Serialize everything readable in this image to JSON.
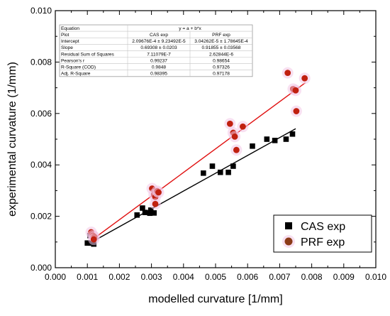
{
  "chart_data": {
    "type": "scatter",
    "xlabel": "modelled curvature [1/mm]",
    "ylabel": "experimental curvature (1/mm)",
    "xlim": [
      0.0,
      0.01
    ],
    "ylim": [
      0.0,
      0.01
    ],
    "xticks": [
      "0.000",
      "0.001",
      "0.002",
      "0.003",
      "0.004",
      "0.005",
      "0.006",
      "0.007",
      "0.008",
      "0.009",
      "0.010"
    ],
    "yticks": [
      "0.000",
      "0.002",
      "0.004",
      "0.006",
      "0.008",
      "0.010"
    ],
    "grid": false,
    "legend_position": "bottom-right",
    "series": [
      {
        "name": "CAS exp",
        "marker": "square",
        "color": "#000000",
        "line_color": "#000000",
        "fit": {
          "intercept": 0.000209676,
          "slope": 0.69308,
          "x_range": [
            0.00105,
            0.0075
          ]
        },
        "points": [
          [
            0.001,
            0.00096
          ],
          [
            0.0011,
            0.00096
          ],
          [
            0.00108,
            0.00125
          ],
          [
            0.0012,
            0.00092
          ],
          [
            0.00255,
            0.00205
          ],
          [
            0.00272,
            0.00232
          ],
          [
            0.0028,
            0.00215
          ],
          [
            0.00295,
            0.00212
          ],
          [
            0.00298,
            0.00224
          ],
          [
            0.00308,
            0.00213
          ],
          [
            0.00462,
            0.00368
          ],
          [
            0.0049,
            0.00395
          ],
          [
            0.00515,
            0.00371
          ],
          [
            0.0054,
            0.00371
          ],
          [
            0.00555,
            0.00395
          ],
          [
            0.00615,
            0.00473
          ],
          [
            0.0066,
            0.005
          ],
          [
            0.00685,
            0.00495
          ],
          [
            0.0072,
            0.005
          ],
          [
            0.0074,
            0.0052
          ]
        ]
      },
      {
        "name": "PRF exp",
        "marker": "circle",
        "color": "#c0200f",
        "legend_color": "#8b3a17",
        "line_color": "#e01010",
        "fit": {
          "intercept": 3.04262e-05,
          "slope": 0.91855,
          "x_range": [
            0.00105,
            0.0078
          ]
        },
        "points": [
          [
            0.00112,
            0.00138
          ],
          [
            0.00117,
            0.00125
          ],
          [
            0.00122,
            0.0012
          ],
          [
            0.0012,
            0.0011
          ],
          [
            0.00302,
            0.00308
          ],
          [
            0.00308,
            0.00285
          ],
          [
            0.00312,
            0.00275
          ],
          [
            0.00318,
            0.00298
          ],
          [
            0.00312,
            0.00248
          ],
          [
            0.00322,
            0.00293
          ],
          [
            0.00545,
            0.0056
          ],
          [
            0.00555,
            0.00525
          ],
          [
            0.0056,
            0.0051
          ],
          [
            0.00565,
            0.00458
          ],
          [
            0.00585,
            0.00549
          ],
          [
            0.00725,
            0.00758
          ],
          [
            0.00742,
            0.00695
          ],
          [
            0.0075,
            0.0069
          ],
          [
            0.00752,
            0.00609
          ],
          [
            0.00778,
            0.00737
          ]
        ]
      }
    ],
    "fit_table": {
      "header": [
        "Equation",
        "y = a + b*x"
      ],
      "columns": [
        "Plot",
        "CAS exp",
        "PRF exp"
      ],
      "rows": [
        [
          "Intercept",
          "2.09676E-4 ± 9.23492E-5",
          "3.04262E-5 ± 1.78645E-4"
        ],
        [
          "Slope",
          "0.69308 ± 0.0203",
          "0.91855 ± 0.03568"
        ],
        [
          "Residual Sum of Squares",
          "7.11079E-7",
          "2.62844E-6"
        ],
        [
          "Pearson's r",
          "0.99237",
          "0.98654"
        ],
        [
          "R-Square (COD)",
          "0.9848",
          "0.97326"
        ],
        [
          "Adj. R-Square",
          "0.98395",
          "0.97178"
        ]
      ]
    }
  }
}
